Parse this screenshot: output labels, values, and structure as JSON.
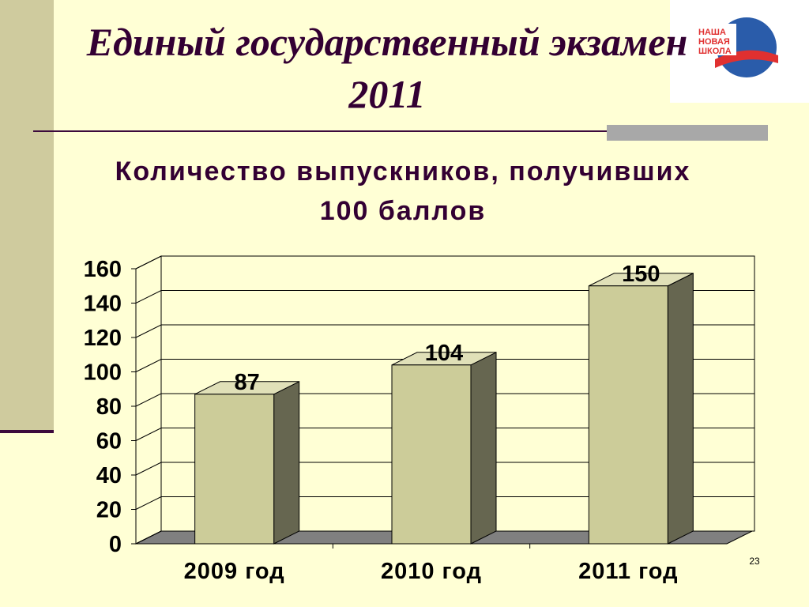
{
  "slide": {
    "title": "Единый государственный экзамен 2011",
    "logo": [
      "НАША",
      "НОВАЯ",
      "ШКОЛА"
    ],
    "page_number": "23"
  },
  "chart_data": {
    "type": "bar3d",
    "title": "Количество выпускников, получивших 100 баллов",
    "categories": [
      "2009 год",
      "2010 год",
      "2011 год"
    ],
    "values": [
      87,
      104,
      150
    ],
    "color": "#cccc99",
    "ylim": [
      0,
      160
    ],
    "yticks": [
      0,
      20,
      40,
      60,
      80,
      100,
      120,
      140,
      160
    ],
    "grid": true
  }
}
